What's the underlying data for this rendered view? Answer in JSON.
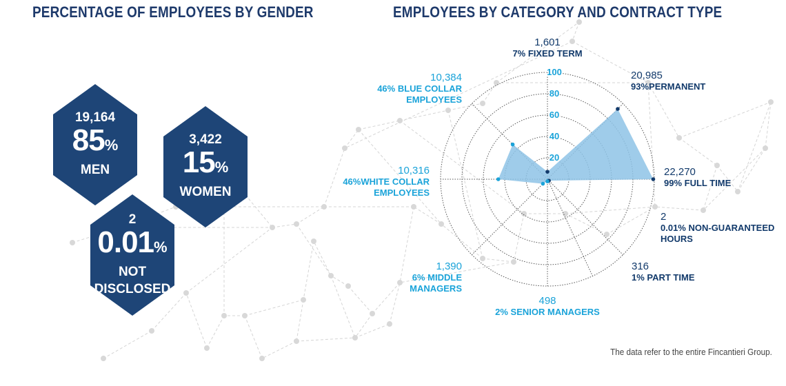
{
  "titles": {
    "left": "PERCENTAGE OF EMPLOYEES BY GENDER",
    "right": "EMPLOYEES BY CATEGORY AND CONTRACT TYPE"
  },
  "gender": [
    {
      "count": "19,164",
      "percent": "85",
      "sign": "%",
      "label": "MEN"
    },
    {
      "count": "3,422",
      "percent": "15",
      "sign": "%",
      "label": "WOMEN"
    },
    {
      "count": "2",
      "percent": "0.01",
      "sign": "%",
      "label": "NOT\nDISCLOSED"
    }
  ],
  "chart_data": {
    "type": "radar",
    "title": "EMPLOYEES BY CATEGORY AND CONTRACT TYPE",
    "radial_ticks": [
      "20",
      "40",
      "60",
      "80",
      "100"
    ],
    "rlim": [
      0,
      100
    ],
    "colors": {
      "dark": "#123a6b",
      "light": "#1aa3d9",
      "fill": "#8ec3e6"
    },
    "spokes": [
      {
        "angle": 0,
        "number": "1,601",
        "label": "7% FIXED TERM",
        "value": 7,
        "tone": "dark"
      },
      {
        "angle": 45,
        "number": "20,985",
        "label": "93%PERMANENT",
        "value": 93,
        "tone": "dark"
      },
      {
        "angle": 90,
        "number": "22,270",
        "label": "99% FULL TIME",
        "value": 99,
        "tone": "dark"
      },
      {
        "angle": 135,
        "number": "2",
        "label": "0.01% NON-GUARANTEED\nHOURS",
        "value": 0.01,
        "tone": "dark"
      },
      {
        "angle": 155,
        "number": "316",
        "label": "1% PART TIME",
        "value": 1,
        "tone": "dark"
      },
      {
        "angle": 180,
        "number": "498",
        "label": "2% SENIOR MANAGERS",
        "value": 2,
        "tone": "light"
      },
      {
        "angle": 225,
        "number": "1,390",
        "label": "6% MIDDLE\nMANAGERS",
        "value": 6,
        "tone": "light"
      },
      {
        "angle": 270,
        "number": "10,316",
        "label": "46%WHITE COLLAR\nEMPLOYEES",
        "value": 46,
        "tone": "light"
      },
      {
        "angle": 315,
        "number": "10,384",
        "label": "46% BLUE COLLAR\nEMPLOYEES",
        "value": 46,
        "tone": "light"
      }
    ]
  },
  "footnote": "The data refer to the entire Fincantieri Group."
}
